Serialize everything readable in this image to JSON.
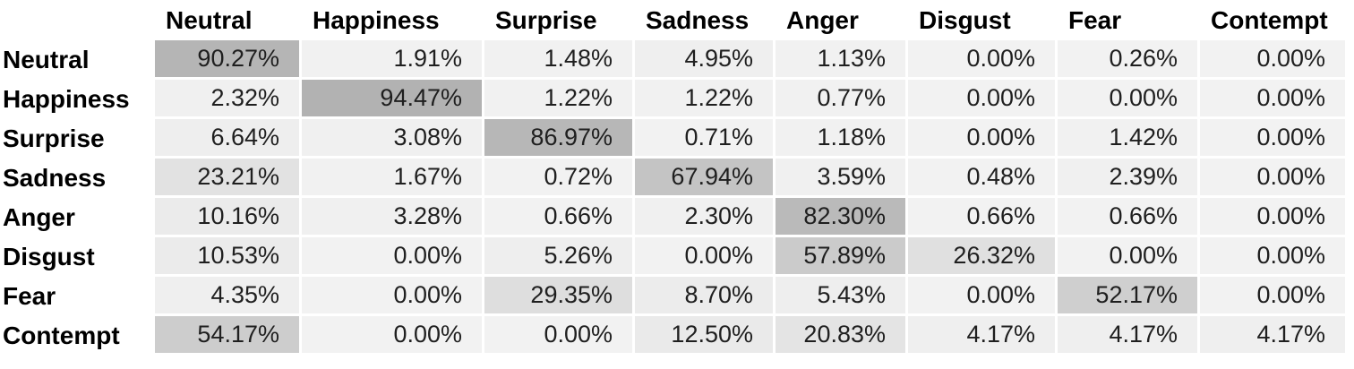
{
  "chart_data": {
    "type": "heatmap",
    "x_labels": [
      "Neutral",
      "Happiness",
      "Surprise",
      "Sadness",
      "Anger",
      "Disgust",
      "Fear",
      "Contempt"
    ],
    "y_labels": [
      "Neutral",
      "Happiness",
      "Surprise",
      "Sadness",
      "Anger",
      "Disgust",
      "Fear",
      "Contempt"
    ],
    "values": [
      [
        90.27,
        1.91,
        1.48,
        4.95,
        1.13,
        0.0,
        0.26,
        0.0
      ],
      [
        2.32,
        94.47,
        1.22,
        1.22,
        0.77,
        0.0,
        0.0,
        0.0
      ],
      [
        6.64,
        3.08,
        86.97,
        0.71,
        1.18,
        0.0,
        1.42,
        0.0
      ],
      [
        23.21,
        1.67,
        0.72,
        67.94,
        3.59,
        0.48,
        2.39,
        0.0
      ],
      [
        10.16,
        3.28,
        0.66,
        2.3,
        82.3,
        0.66,
        0.66,
        0.0
      ],
      [
        10.53,
        0.0,
        5.26,
        0.0,
        57.89,
        26.32,
        0.0,
        0.0
      ],
      [
        4.35,
        0.0,
        29.35,
        8.7,
        5.43,
        0.0,
        52.17,
        0.0
      ],
      [
        54.17,
        0.0,
        0.0,
        12.5,
        20.83,
        4.17,
        4.17,
        4.17
      ]
    ],
    "value_format": "percent_2dp",
    "colorscale": {
      "min": 0,
      "max": 94.47,
      "min_color": "#F2F2F2",
      "max_color": "#B2B2B2"
    },
    "grid_color": "#FFFFFF",
    "legend": "none"
  }
}
